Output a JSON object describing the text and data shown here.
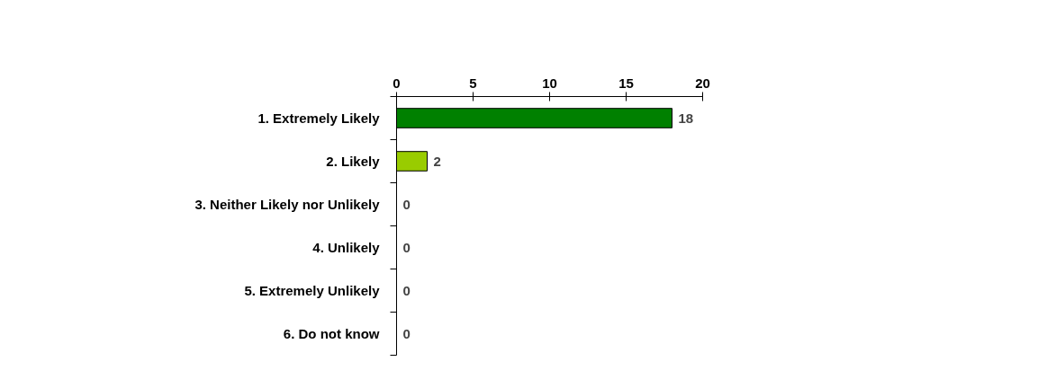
{
  "chart_data": {
    "type": "bar",
    "orientation": "horizontal",
    "categories": [
      "1. Extremely Likely",
      "2. Likely",
      "3. Neither Likely nor Unlikely",
      "4. Unlikely",
      "5. Extremely Unlikely",
      "6. Do not know"
    ],
    "values": [
      18,
      2,
      0,
      0,
      0,
      0
    ],
    "colors": [
      "#008000",
      "#99cc00",
      null,
      null,
      null,
      null
    ],
    "xlim": [
      0,
      20
    ],
    "xticks": [
      0,
      5,
      10,
      15,
      20
    ],
    "data_labels": true,
    "grid": false
  }
}
